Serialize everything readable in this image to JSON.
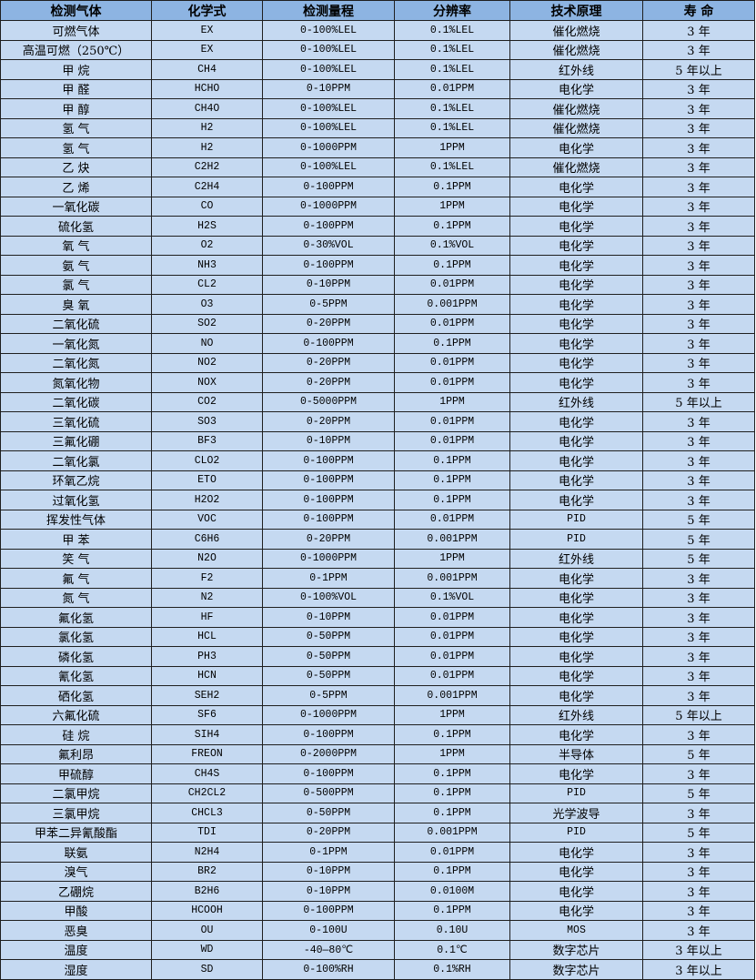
{
  "colors": {
    "header_bg": "#8db4e2",
    "cell_bg": "#c5d9f1",
    "border": "#1f1f1f"
  },
  "table": {
    "headers": [
      "检测气体",
      "化学式",
      "检测量程",
      "分辨率",
      "技术原理",
      "寿 命"
    ],
    "rows": [
      [
        "可燃气体",
        "EX",
        "0-100%LEL",
        "0.1%LEL",
        "催化燃烧",
        "3 年"
      ],
      [
        "高温可燃（250℃）",
        "EX",
        "0-100%LEL",
        "0.1%LEL",
        "催化燃烧",
        "3 年"
      ],
      [
        "甲 烷",
        "CH4",
        "0-100%LEL",
        "0.1%LEL",
        "红外线",
        "5 年以上"
      ],
      [
        "甲 醛",
        "HCHO",
        "0-10PPM",
        "0.01PPM",
        "电化学",
        "3 年"
      ],
      [
        "甲 醇",
        "CH4O",
        "0-100%LEL",
        "0.1%LEL",
        "催化燃烧",
        "3 年"
      ],
      [
        "氢 气",
        "H2",
        "0-100%LEL",
        "0.1%LEL",
        "催化燃烧",
        "3 年"
      ],
      [
        "氢 气",
        "H2",
        "0-1000PPM",
        "1PPM",
        "电化学",
        "3 年"
      ],
      [
        "乙 炔",
        "C2H2",
        "0-100%LEL",
        "0.1%LEL",
        "催化燃烧",
        "3 年"
      ],
      [
        "乙 烯",
        "C2H4",
        "0-100PPM",
        "0.1PPM",
        "电化学",
        "3 年"
      ],
      [
        "一氧化碳",
        "CO",
        "0-1000PPM",
        "1PPM",
        "电化学",
        "3 年"
      ],
      [
        "硫化氢",
        "H2S",
        "0-100PPM",
        "0.1PPM",
        "电化学",
        "3 年"
      ],
      [
        "氧 气",
        "O2",
        "0-30%VOL",
        "0.1%VOL",
        "电化学",
        "3 年"
      ],
      [
        "氨 气",
        "NH3",
        "0-100PPM",
        "0.1PPM",
        "电化学",
        "3 年"
      ],
      [
        "氯 气",
        "CL2",
        "0-10PPM",
        "0.01PPM",
        "电化学",
        "3 年"
      ],
      [
        "臭 氧",
        "O3",
        "0-5PPM",
        "0.001PPM",
        "电化学",
        "3 年"
      ],
      [
        "二氧化硫",
        "SO2",
        "0-20PPM",
        "0.01PPM",
        "电化学",
        "3 年"
      ],
      [
        "一氧化氮",
        "NO",
        "0-100PPM",
        "0.1PPM",
        "电化学",
        "3 年"
      ],
      [
        "二氧化氮",
        "NO2",
        "0-20PPM",
        "0.01PPM",
        "电化学",
        "3 年"
      ],
      [
        "氮氧化物",
        "NOX",
        "0-20PPM",
        "0.01PPM",
        "电化学",
        "3 年"
      ],
      [
        "二氧化碳",
        "CO2",
        "0-5000PPM",
        "1PPM",
        "红外线",
        "5 年以上"
      ],
      [
        "三氧化硫",
        "SO3",
        "0-20PPM",
        "0.01PPM",
        "电化学",
        "3 年"
      ],
      [
        "三氟化硼",
        "BF3",
        "0-10PPM",
        "0.01PPM",
        "电化学",
        "3 年"
      ],
      [
        "二氧化氯",
        "CLO2",
        "0-100PPM",
        "0.1PPM",
        "电化学",
        "3 年"
      ],
      [
        "环氧乙烷",
        "ETO",
        "0-100PPM",
        "0.1PPM",
        "电化学",
        "3 年"
      ],
      [
        "过氧化氢",
        "H2O2",
        "0-100PPM",
        "0.1PPM",
        "电化学",
        "3 年"
      ],
      [
        "挥发性气体",
        "VOC",
        "0-100PPM",
        "0.01PPM",
        "PID",
        "5 年"
      ],
      [
        "甲 苯",
        "C6H6",
        "0-20PPM",
        "0.001PPM",
        "PID",
        "5 年"
      ],
      [
        "笑 气",
        "N2O",
        "0-1000PPM",
        "1PPM",
        "红外线",
        "5 年"
      ],
      [
        "氟 气",
        "F2",
        "0-1PPM",
        "0.001PPM",
        "电化学",
        "3 年"
      ],
      [
        "氮 气",
        "N2",
        "0-100%VOL",
        "0.1%VOL",
        "电化学",
        "3 年"
      ],
      [
        "氟化氢",
        "HF",
        "0-10PPM",
        "0.01PPM",
        "电化学",
        "3 年"
      ],
      [
        "氯化氢",
        "HCL",
        "0-50PPM",
        "0.01PPM",
        "电化学",
        "3 年"
      ],
      [
        "磷化氢",
        "PH3",
        "0-50PPM",
        "0.01PPM",
        "电化学",
        "3 年"
      ],
      [
        "氰化氢",
        "HCN",
        "0-50PPM",
        "0.01PPM",
        "电化学",
        "3 年"
      ],
      [
        "硒化氢",
        "SEH2",
        "0-5PPM",
        "0.001PPM",
        "电化学",
        "3 年"
      ],
      [
        "六氟化硫",
        "SF6",
        "0-1000PPM",
        "1PPM",
        "红外线",
        "5 年以上"
      ],
      [
        "硅 烷",
        "SIH4",
        "0-100PPM",
        "0.1PPM",
        "电化学",
        "3 年"
      ],
      [
        "氟利昂",
        "FREON",
        "0-2000PPM",
        "1PPM",
        "半导体",
        "5 年"
      ],
      [
        "甲硫醇",
        "CH4S",
        "0-100PPM",
        "0.1PPM",
        "电化学",
        "3 年"
      ],
      [
        "二氯甲烷",
        "CH2CL2",
        "0-500PPM",
        "0.1PPM",
        "PID",
        "5 年"
      ],
      [
        "三氯甲烷",
        "CHCL3",
        "0-50PPM",
        "0.1PPM",
        "光学波导",
        "3 年"
      ],
      [
        "甲苯二异氰酸酯",
        "TDI",
        "0-20PPM",
        "0.001PPM",
        "PID",
        "5 年"
      ],
      [
        "联氨",
        "N2H4",
        "0-1PPM",
        "0.01PPM",
        "电化学",
        "3 年"
      ],
      [
        "溴气",
        "BR2",
        "0-10PPM",
        "0.1PPM",
        "电化学",
        "3 年"
      ],
      [
        "乙硼烷",
        "B2H6",
        "0-10PPM",
        "0.0100M",
        "电化学",
        "3 年"
      ],
      [
        "甲酸",
        "HCOOH",
        "0-100PPM",
        "0.1PPM",
        "电化学",
        "3 年"
      ],
      [
        "恶臭",
        "OU",
        "0-100U",
        "0.10U",
        "MOS",
        "3 年"
      ],
      [
        "温度",
        "WD",
        "-40—80℃",
        "0.1℃",
        "数字芯片",
        "3 年以上"
      ],
      [
        "湿度",
        "SD",
        "0-100%RH",
        "0.1%RH",
        "数字芯片",
        "3 年以上"
      ]
    ]
  }
}
